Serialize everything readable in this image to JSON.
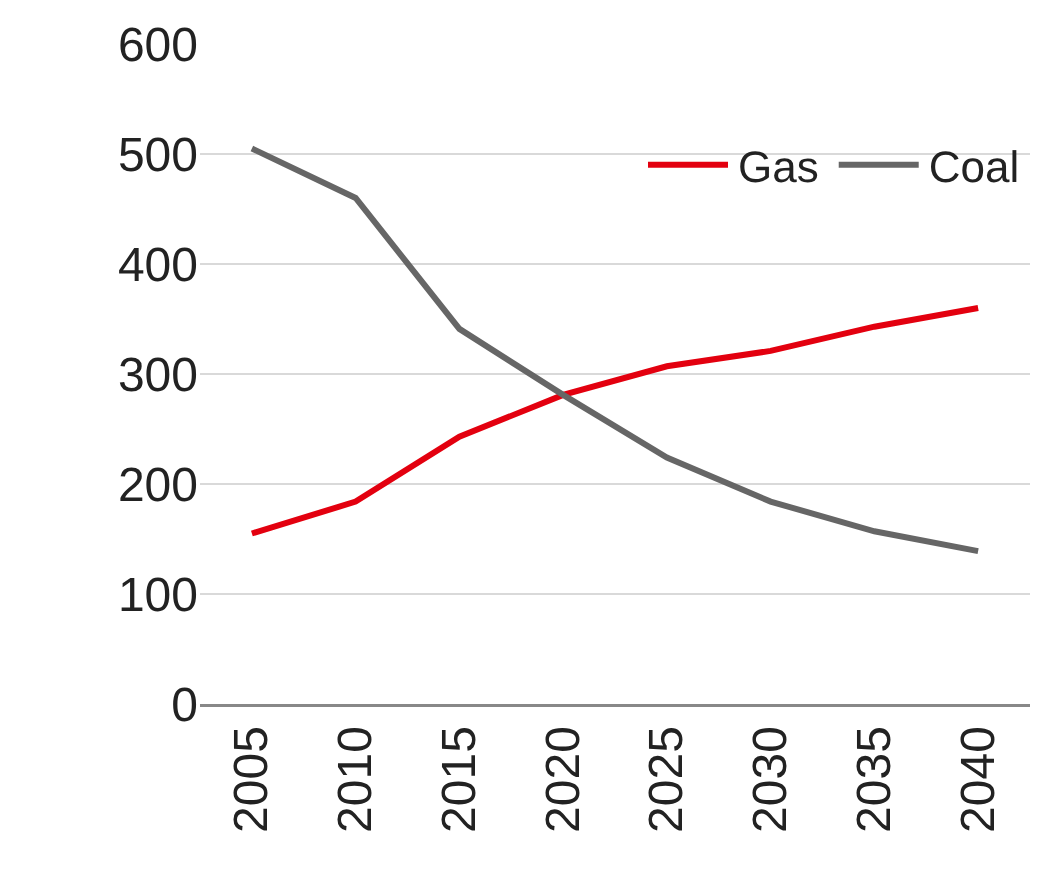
{
  "chart_data": {
    "type": "line",
    "categories": [
      "2005",
      "2010",
      "2015",
      "2020",
      "2025",
      "2030",
      "2035",
      "2040"
    ],
    "series": [
      {
        "name": "Gas",
        "color": "#e3000f",
        "values": [
          155,
          184,
          243,
          281,
          307,
          321,
          343,
          360
        ]
      },
      {
        "name": "Coal",
        "color": "#666666",
        "values": [
          505,
          460,
          341,
          281,
          224,
          184,
          157,
          139
        ]
      }
    ],
    "ylim": [
      0,
      600
    ],
    "yticks": [
      0,
      100,
      200,
      300,
      400,
      500,
      600
    ],
    "grid": "y",
    "legend": "top right",
    "marker": "none",
    "line_style": "solid"
  }
}
